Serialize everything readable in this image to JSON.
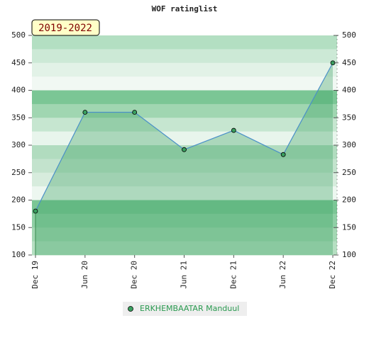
{
  "chart_data": {
    "type": "line",
    "title": "WOF ratinglist",
    "badge": "2019-2022",
    "categories": [
      "Dec 19",
      "Jun 20",
      "Dec 20",
      "Jun 21",
      "Dec 21",
      "Jun 22",
      "Dec 22"
    ],
    "series": [
      {
        "name": "ERKHEMBAATAR Manduul",
        "color": "#4a90c8",
        "values": [
          180,
          360,
          360,
          292,
          327,
          283,
          450
        ]
      }
    ],
    "ylim": [
      100,
      500
    ],
    "yticks": [
      100,
      150,
      200,
      250,
      300,
      350,
      400,
      450,
      500
    ],
    "y2ticks": [
      100,
      150,
      200,
      250,
      300,
      350,
      400,
      450,
      500
    ]
  }
}
